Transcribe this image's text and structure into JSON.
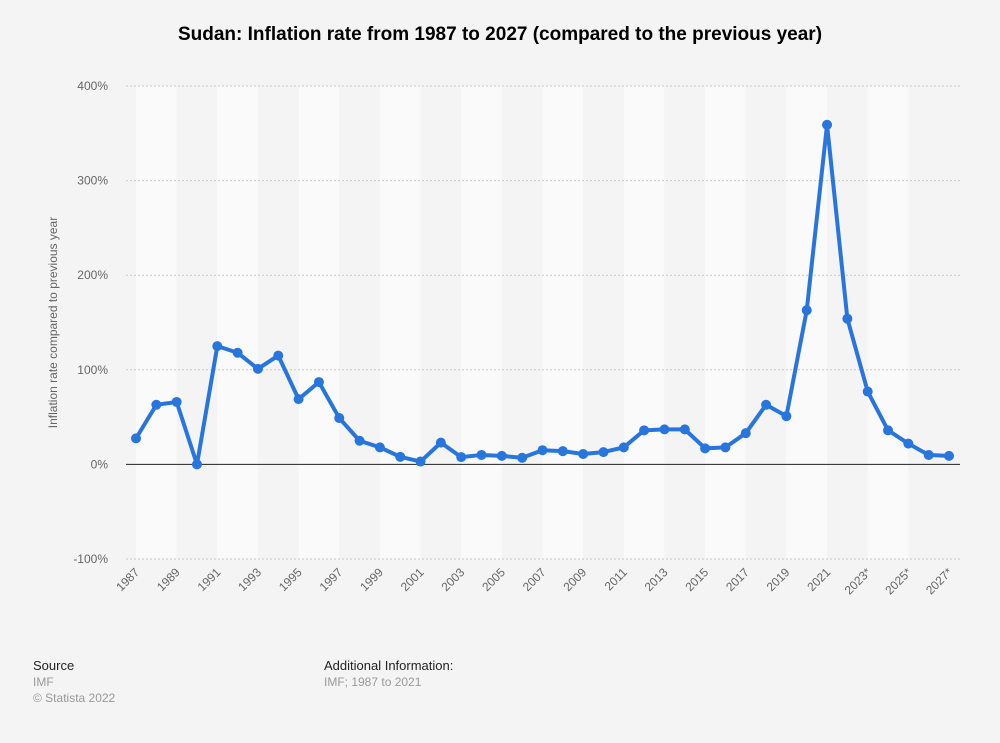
{
  "chart_data": {
    "type": "line",
    "title": "Sudan: Inflation rate from 1987 to 2027 (compared to the previous year)",
    "xlabel": "",
    "ylabel": "Inflation rate compared to previous year",
    "ylim": [
      -100,
      400
    ],
    "yticks": [
      400,
      300,
      200,
      100,
      0,
      -100
    ],
    "ytick_labels": [
      "400%",
      "300%",
      "200%",
      "100%",
      "0%",
      "-100%"
    ],
    "x": [
      "1987",
      "1988",
      "1989",
      "1990",
      "1991",
      "1992",
      "1993",
      "1994",
      "1995",
      "1996",
      "1997",
      "1998",
      "1999",
      "2000",
      "2001",
      "2002",
      "2003",
      "2004",
      "2005",
      "2006",
      "2007",
      "2008",
      "2009",
      "2010",
      "2011",
      "2012",
      "2013",
      "2014",
      "2015",
      "2016",
      "2017",
      "2018",
      "2019",
      "2020",
      "2021",
      "2022",
      "2023*",
      "2024*",
      "2025*",
      "2026*",
      "2027*"
    ],
    "xtick_labels": [
      "1987",
      "1989",
      "1991",
      "1993",
      "1995",
      "1997",
      "1999",
      "2001",
      "2003",
      "2005",
      "2007",
      "2009",
      "2011",
      "2013",
      "2015",
      "2017",
      "2019",
      "2021",
      "2023*",
      "2025*",
      "2027*"
    ],
    "series": [
      {
        "name": "Inflation rate",
        "color": "#2876dd",
        "values": [
          27.5,
          63,
          66,
          0,
          125,
          118,
          101,
          115,
          69,
          87,
          49,
          25,
          18,
          8,
          3,
          23,
          7.7,
          10,
          9,
          7,
          15,
          14,
          11,
          13,
          18,
          36,
          37,
          37,
          17,
          18,
          33,
          63,
          51,
          163,
          359,
          154,
          77,
          36,
          22,
          10,
          9
        ]
      }
    ],
    "grid": true
  },
  "footer": {
    "source_label": "Source",
    "source": "IMF",
    "copyright": "© Statista 2022",
    "info_label": "Additional Information:",
    "info": "IMF; 1987 to 2021"
  }
}
